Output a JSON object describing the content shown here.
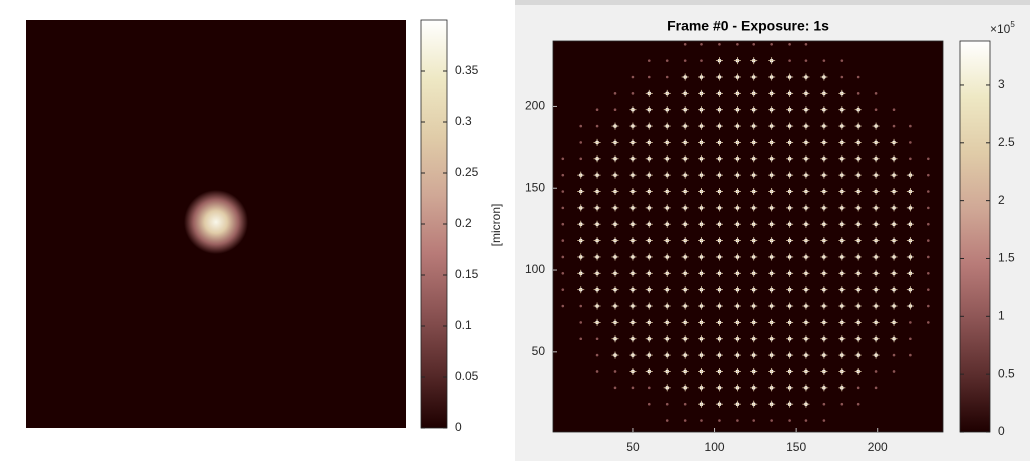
{
  "chart_data": [
    {
      "type": "image",
      "peak": 0.38,
      "clim": [
        0,
        0.4
      ],
      "cticks": [
        0,
        0.05,
        0.1,
        0.15,
        0.2,
        0.25,
        0.3,
        0.35
      ],
      "clabel": "[micron]",
      "colormap": [
        "#1e0000",
        "#5a2c2c",
        "#8c5454",
        "#b87b78",
        "#d0a896",
        "#e0cca8",
        "#eee8c4",
        "#ffffff"
      ]
    },
    {
      "type": "spots",
      "title": "Frame #0 - Exposure: 1s",
      "xlim": [
        1,
        240
      ],
      "ylim": [
        1,
        240
      ],
      "xticks": [
        50,
        100,
        150,
        200
      ],
      "yticks": [
        50,
        100,
        150,
        200
      ],
      "clim": [
        0,
        3.38
      ],
      "cticks": [
        0,
        0.5,
        1,
        1.5,
        2,
        2.5,
        3
      ],
      "cexp_base": "×10",
      "cexp": "5",
      "colormap": [
        "#1e0000",
        "#5a2c2c",
        "#8c5454",
        "#b87b78",
        "#d0a896",
        "#e0cca8",
        "#eee8c4",
        "#ffffff"
      ],
      "spot_x": [
        7,
        18,
        28,
        39,
        50,
        60,
        71,
        82,
        92,
        103,
        114,
        124,
        135,
        146,
        156,
        167,
        178,
        188,
        199,
        210,
        220,
        231
      ],
      "spot_y": [
        8,
        18,
        28,
        38,
        48,
        58,
        68,
        78,
        88,
        98,
        108,
        118,
        128,
        138,
        148,
        158,
        168,
        178,
        188,
        198,
        208,
        218,
        228,
        238
      ]
    }
  ]
}
